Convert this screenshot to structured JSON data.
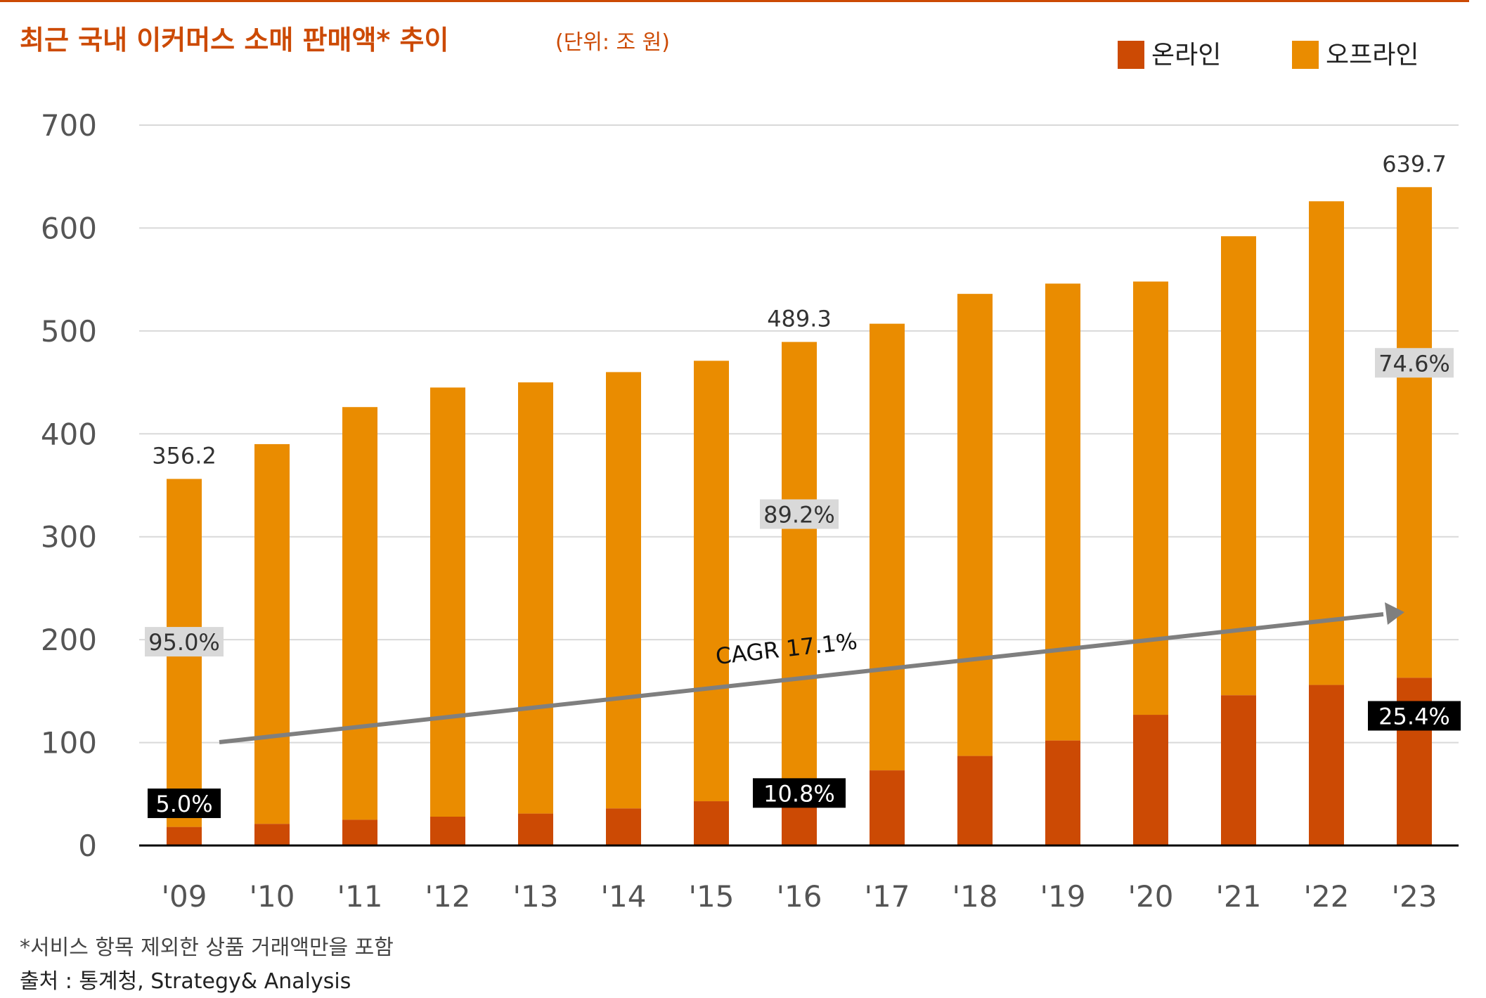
{
  "header": {
    "title": "최근 국내 이커머스 소매 판매액* 추이",
    "unit": "(단위: 조 원)"
  },
  "colors": {
    "accent": "#cc4a04",
    "online": "#cc4a04",
    "offline": "#ea8c00",
    "grid": "#d9d9d9",
    "arrow": "#7f7f7f",
    "pct_dark_bg": "#000000",
    "pct_light_bg": "#d9d9d9"
  },
  "legend": {
    "online_label": "온라인",
    "offline_label": "오프라인",
    "placement": "top-right"
  },
  "annotations": {
    "total_labels": [
      {
        "category": "'09",
        "text": "356.2"
      },
      {
        "category": "'16",
        "text": "489.3"
      },
      {
        "category": "'23",
        "text": "639.7"
      }
    ],
    "offline_pct": [
      {
        "category": "'09",
        "text": "95.0%"
      },
      {
        "category": "'16",
        "text": "89.2%"
      },
      {
        "category": "'23",
        "text": "74.6%"
      }
    ],
    "online_pct": [
      {
        "category": "'09",
        "text": "5.0%"
      },
      {
        "category": "'16",
        "text": "10.8%"
      },
      {
        "category": "'23",
        "text": "25.4%"
      }
    ],
    "cagr": "CAGR 17.1%"
  },
  "footnotes": {
    "note": "*서비스 항목 제외한 상품 거래액만을 포함",
    "source": "출처 : 통계청, Strategy& Analysis"
  },
  "chart_data": {
    "type": "bar",
    "stacked": true,
    "categories": [
      "'09",
      "'10",
      "'11",
      "'12",
      "'13",
      "'14",
      "'15",
      "'16",
      "'17",
      "'18",
      "'19",
      "'20",
      "'21",
      "'22",
      "'23"
    ],
    "series": [
      {
        "name": "온라인",
        "values": [
          18,
          21,
          25,
          28,
          31,
          36,
          43,
          53,
          73,
          87,
          102,
          127,
          146,
          156,
          163
        ]
      },
      {
        "name": "오프라인",
        "values": [
          338.2,
          369,
          401,
          417,
          419,
          424,
          428,
          436.3,
          434,
          449,
          444,
          421,
          446,
          470,
          476.7
        ]
      }
    ],
    "totals": [
      356.2,
      390,
      426,
      445,
      450,
      460,
      471,
      489.3,
      507,
      536,
      546,
      548,
      592,
      626,
      639.7
    ],
    "yticks": [
      0,
      100,
      200,
      300,
      400,
      500,
      600,
      700
    ],
    "ylim": [
      0,
      700
    ],
    "grid": true
  }
}
